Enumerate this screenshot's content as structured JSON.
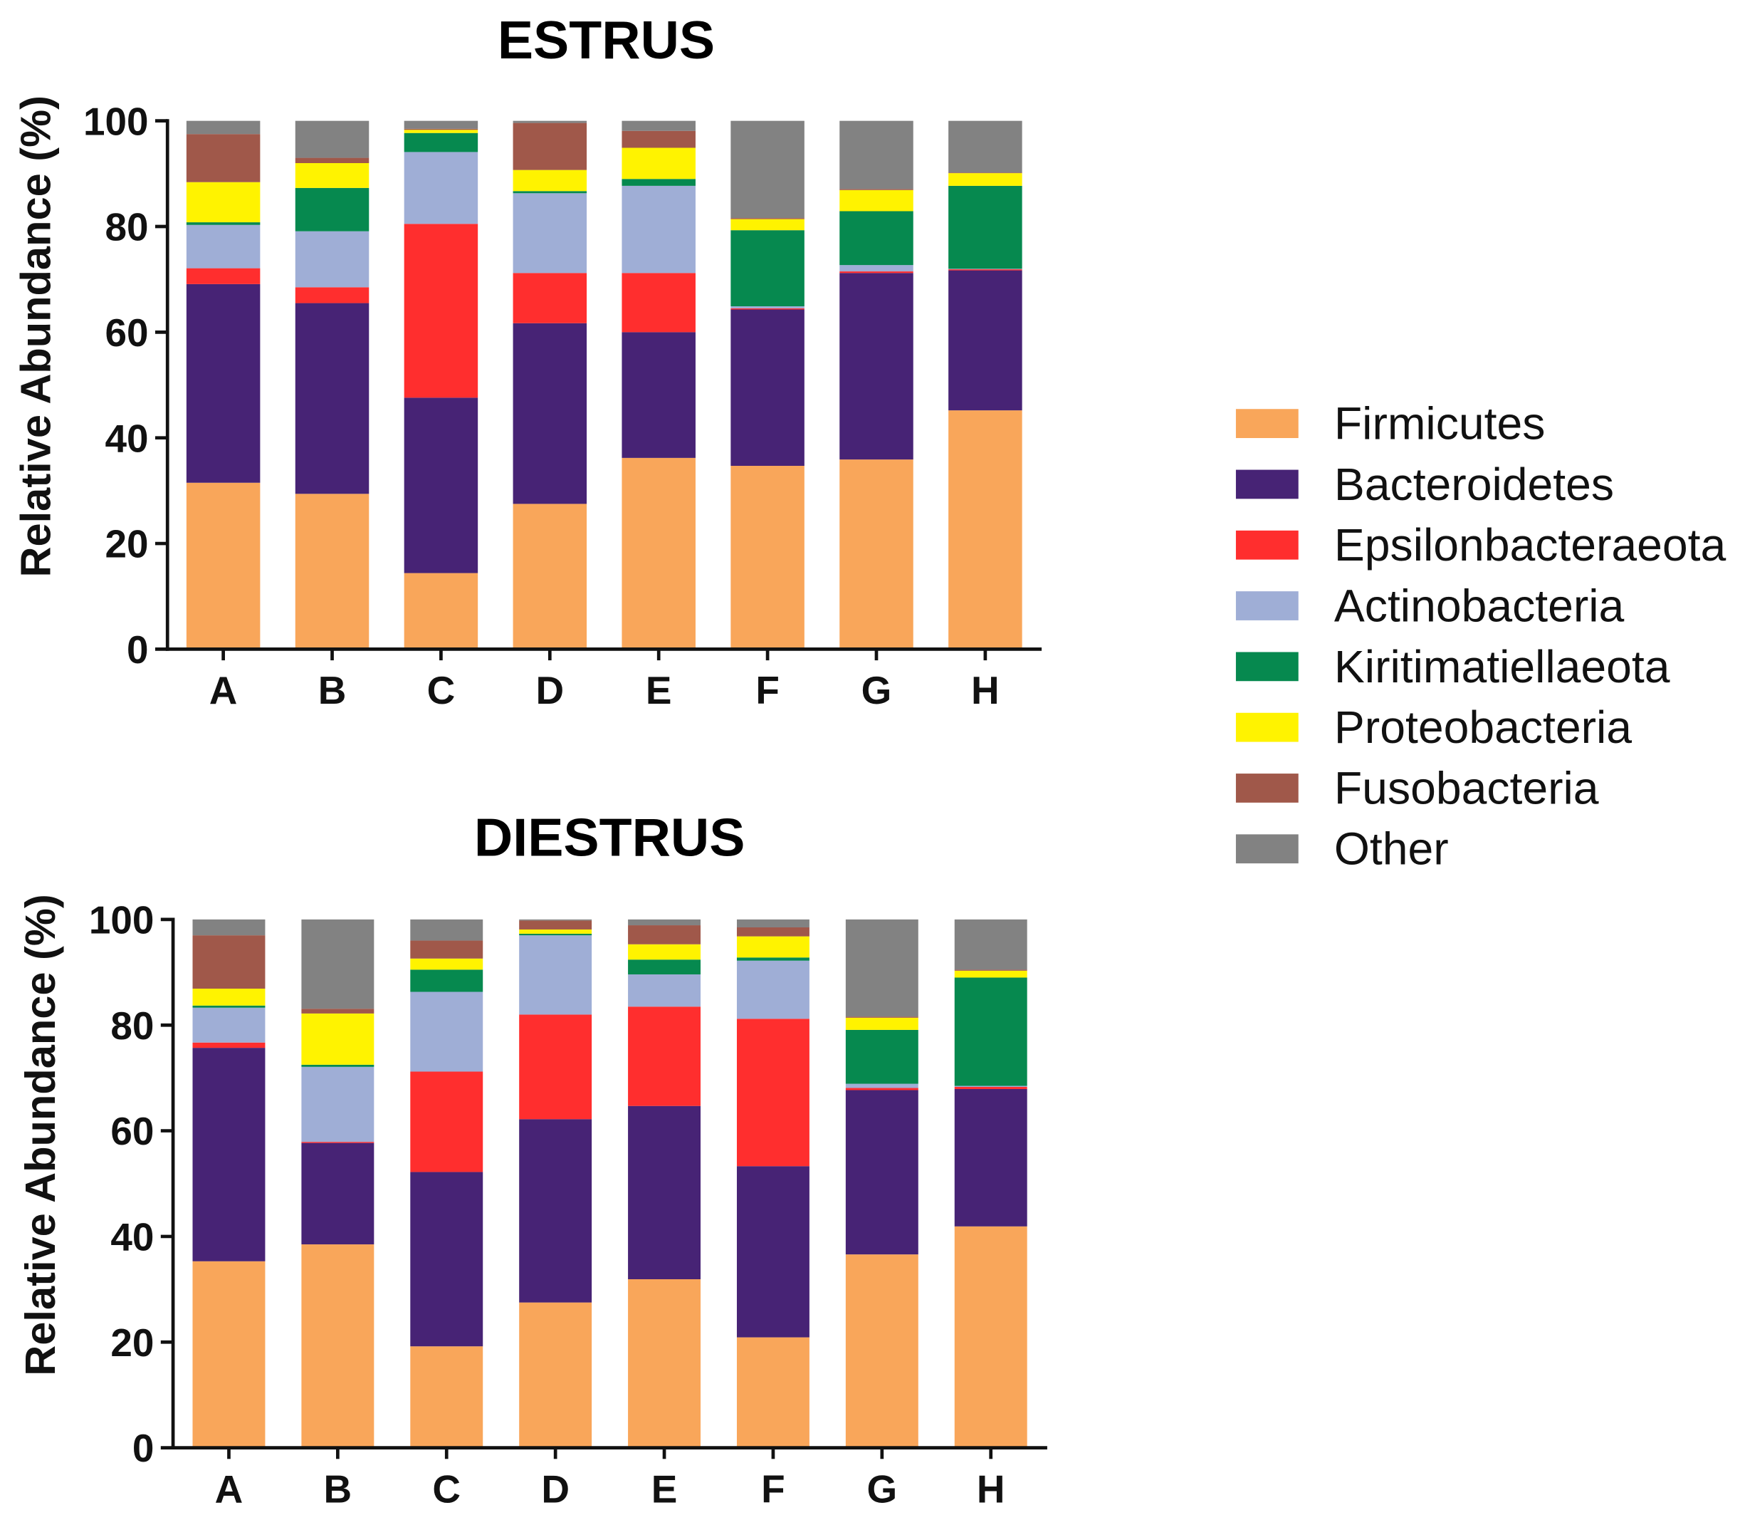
{
  "chart_data": {
    "type": "bar",
    "stacked": true,
    "legend": {
      "position": "right",
      "series": [
        {
          "name": "Firmicutes",
          "color": "#F9A65A"
        },
        {
          "name": "Bacteroidetes",
          "color": "#472375"
        },
        {
          "name": "Epsilonbacteraeota",
          "color": "#FF2E2E"
        },
        {
          "name": "Actinobacteria",
          "color": "#9FAED6"
        },
        {
          "name": "Kiritimatiellaeota",
          "color": "#06894F"
        },
        {
          "name": "Proteobacteria",
          "color": "#FFF300"
        },
        {
          "name": "Fusobacteria",
          "color": "#A0584A"
        },
        {
          "name": "Other",
          "color": "#828282"
        }
      ]
    },
    "panels": [
      {
        "title": "ESTRUS",
        "ylabel": "Relative Abundance (%)",
        "ylim": [
          0,
          100
        ],
        "yticks": [
          0,
          20,
          40,
          60,
          80,
          100
        ],
        "categories": [
          "A",
          "B",
          "C",
          "D",
          "E",
          "F",
          "G",
          "H"
        ],
        "series_values": [
          [
            31.5,
            29.4,
            14.4,
            27.5,
            36.2,
            34.7,
            35.9,
            45.2
          ],
          [
            37.6,
            36.1,
            33.2,
            34.2,
            23.8,
            29.6,
            35.3,
            26.5
          ],
          [
            3.0,
            3.0,
            32.9,
            9.5,
            11.2,
            0.2,
            0.3,
            0.2
          ],
          [
            8.2,
            10.6,
            13.6,
            15.1,
            16.5,
            0.4,
            1.2,
            0.1
          ],
          [
            0.5,
            8.2,
            3.6,
            0.4,
            1.3,
            14.4,
            10.2,
            15.7
          ],
          [
            7.6,
            4.7,
            0.6,
            4.0,
            5.9,
            2.1,
            4.0,
            2.4
          ],
          [
            9.1,
            1.0,
            0.2,
            8.9,
            3.2,
            0.2,
            0.2,
            0.1
          ],
          [
            2.5,
            7.0,
            1.5,
            0.4,
            1.9,
            18.4,
            12.9,
            9.8
          ]
        ]
      },
      {
        "title": "DIESTRUS",
        "ylabel": "Relative Abundance (%)",
        "ylim": [
          0,
          100
        ],
        "yticks": [
          0,
          20,
          40,
          60,
          80,
          100
        ],
        "categories": [
          "A",
          "B",
          "C",
          "D",
          "E",
          "F",
          "G",
          "H"
        ],
        "series_values": [
          [
            35.3,
            38.5,
            19.2,
            27.5,
            31.9,
            20.9,
            36.6,
            41.9
          ],
          [
            40.4,
            19.2,
            33.0,
            34.7,
            32.8,
            32.4,
            31.1,
            26.0
          ],
          [
            1.0,
            0.2,
            19.0,
            19.8,
            18.8,
            27.9,
            0.4,
            0.4
          ],
          [
            6.6,
            14.2,
            15.1,
            15.0,
            6.1,
            11.0,
            0.8,
            0.2
          ],
          [
            0.4,
            0.4,
            4.2,
            0.3,
            2.8,
            0.6,
            10.2,
            20.5
          ],
          [
            3.2,
            9.7,
            2.1,
            0.8,
            2.9,
            4.0,
            2.3,
            1.3
          ],
          [
            10.1,
            0.9,
            3.4,
            1.7,
            3.6,
            1.7,
            0.2,
            0.2
          ],
          [
            3.0,
            16.9,
            4.0,
            0.2,
            1.1,
            1.5,
            18.4,
            9.5
          ]
        ]
      }
    ]
  }
}
